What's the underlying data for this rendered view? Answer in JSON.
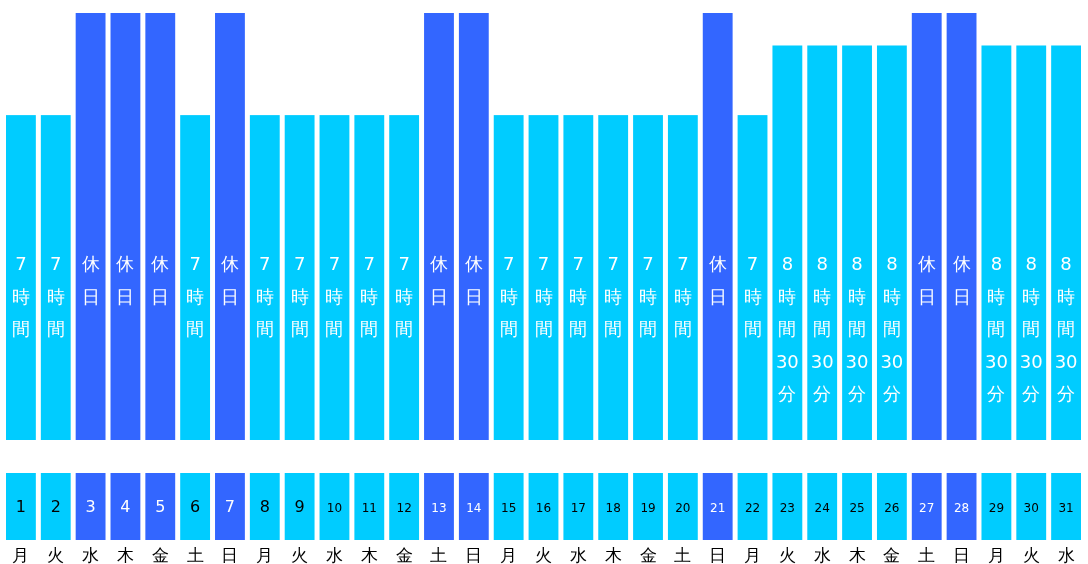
{
  "chart_data": {
    "type": "bar",
    "categories": [
      "1",
      "2",
      "3",
      "4",
      "5",
      "6",
      "7",
      "8",
      "9",
      "10",
      "11",
      "12",
      "13",
      "14",
      "15",
      "16",
      "17",
      "18",
      "19",
      "20",
      "21",
      "22",
      "23",
      "24",
      "25",
      "26",
      "27",
      "28",
      "29",
      "30",
      "31"
    ],
    "values": [
      7,
      7,
      9.2,
      9.2,
      9.2,
      7,
      9.2,
      7,
      7,
      7,
      7,
      7,
      9.2,
      9.2,
      7,
      7,
      7,
      7,
      7,
      7,
      9.2,
      7,
      8.5,
      8.5,
      8.5,
      8.5,
      9.2,
      9.2,
      8.5,
      8.5,
      8.5
    ],
    "colors": [
      "#00ccff",
      "#00ccff",
      "#3366ff",
      "#3366ff",
      "#3366ff",
      "#00ccff",
      "#3366ff",
      "#00ccff",
      "#00ccff",
      "#00ccff",
      "#00ccff",
      "#00ccff",
      "#3366ff",
      "#3366ff",
      "#00ccff",
      "#00ccff",
      "#00ccff",
      "#00ccff",
      "#00ccff",
      "#00ccff",
      "#3366ff",
      "#00ccff",
      "#00ccff",
      "#00ccff",
      "#00ccff",
      "#00ccff",
      "#3366ff",
      "#3366ff",
      "#00ccff",
      "#00ccff",
      "#00ccff"
    ],
    "value_labels": [
      "7時間",
      "7時間",
      "休日",
      "休日",
      "休日",
      "7時間",
      "休日",
      "7時間",
      "7時間",
      "7時間",
      "7時間",
      "7時間",
      "休日",
      "休日",
      "7時間",
      "7時間",
      "7時間",
      "7時間",
      "7時間",
      "7時間",
      "休日",
      "7時間",
      "8時間30分",
      "8時間30分",
      "8時間30分",
      "8時間30分",
      "休日",
      "休日",
      "8時間30分",
      "8時間30分",
      "8時間30分"
    ],
    "annotations": [
      "月",
      "火",
      "水",
      "木",
      "金",
      "土",
      "日",
      "月",
      "火",
      "水",
      "木",
      "金",
      "土",
      "日",
      "月",
      "火",
      "水",
      "木",
      "金",
      "土",
      "日",
      "月",
      "火",
      "水",
      "木",
      "金",
      "土",
      "日",
      "月",
      "火",
      "水"
    ]
  }
}
